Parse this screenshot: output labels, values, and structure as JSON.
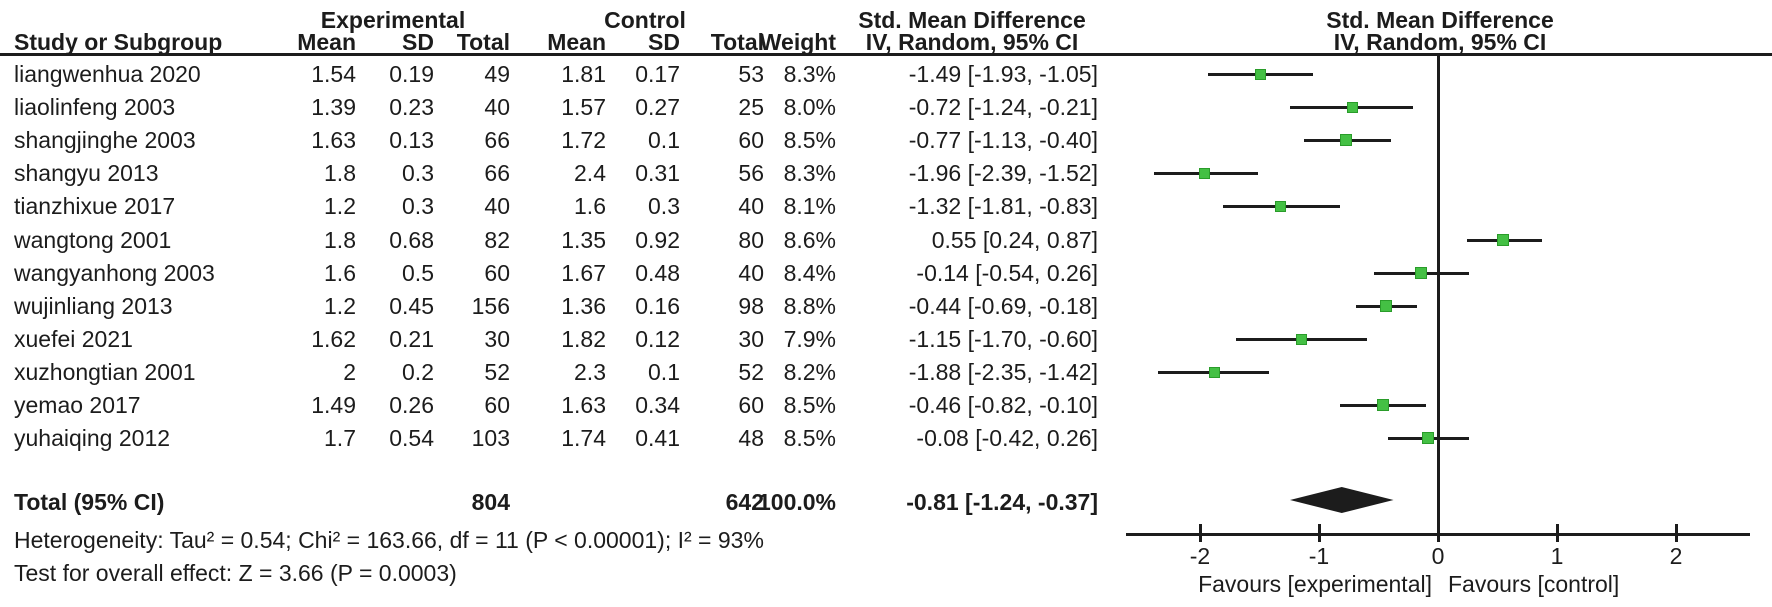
{
  "header": {
    "group_experimental": "Experimental",
    "group_control": "Control",
    "smd_text_title": "Std. Mean Difference",
    "smd_plot_title": "Std. Mean Difference",
    "col_study": "Study or Subgroup",
    "col_mean_e": "Mean",
    "col_sd_e": "SD",
    "col_total_e": "Total",
    "col_mean_c": "Mean",
    "col_sd_c": "SD",
    "col_total_c": "Total",
    "col_weight": "Weight",
    "col_ci_text": "IV, Random, 95% CI",
    "col_ci_plot": "IV, Random, 95% CI"
  },
  "colors": {
    "marker_green": "#44c044",
    "marker_border": "#2a9c2a",
    "line_black": "#1c1c1c"
  },
  "chart_data": {
    "type": "forest",
    "effect_label": "Std. Mean Difference",
    "method": "IV, Random, 95% CI",
    "x_ticks": [
      -2,
      -1,
      0,
      1,
      2
    ],
    "xlim": [
      -2.6,
      2.6
    ],
    "favours_left": "Favours [experimental]",
    "favours_right": "Favours [control]",
    "studies": [
      {
        "name": "liangwenhua 2020",
        "mean_e": "1.54",
        "sd_e": "0.19",
        "n_e": "49",
        "mean_c": "1.81",
        "sd_c": "0.17",
        "n_c": "53",
        "weight": "8.3%",
        "ci_text": "-1.49 [-1.93, -1.05]",
        "smd": -1.49,
        "lo": -1.93,
        "hi": -1.05
      },
      {
        "name": "liaolinfeng 2003",
        "mean_e": "1.39",
        "sd_e": "0.23",
        "n_e": "40",
        "mean_c": "1.57",
        "sd_c": "0.27",
        "n_c": "25",
        "weight": "8.0%",
        "ci_text": "-0.72 [-1.24, -0.21]",
        "smd": -0.72,
        "lo": -1.24,
        "hi": -0.21
      },
      {
        "name": "shangjinghe 2003",
        "mean_e": "1.63",
        "sd_e": "0.13",
        "n_e": "66",
        "mean_c": "1.72",
        "sd_c": "0.1",
        "n_c": "60",
        "weight": "8.5%",
        "ci_text": "-0.77 [-1.13, -0.40]",
        "smd": -0.77,
        "lo": -1.13,
        "hi": -0.4
      },
      {
        "name": "shangyu 2013",
        "mean_e": "1.8",
        "sd_e": "0.3",
        "n_e": "66",
        "mean_c": "2.4",
        "sd_c": "0.31",
        "n_c": "56",
        "weight": "8.3%",
        "ci_text": "-1.96 [-2.39, -1.52]",
        "smd": -1.96,
        "lo": -2.39,
        "hi": -1.52
      },
      {
        "name": "tianzhixue 2017",
        "mean_e": "1.2",
        "sd_e": "0.3",
        "n_e": "40",
        "mean_c": "1.6",
        "sd_c": "0.3",
        "n_c": "40",
        "weight": "8.1%",
        "ci_text": "-1.32 [-1.81, -0.83]",
        "smd": -1.32,
        "lo": -1.81,
        "hi": -0.83
      },
      {
        "name": "wangtong 2001",
        "mean_e": "1.8",
        "sd_e": "0.68",
        "n_e": "82",
        "mean_c": "1.35",
        "sd_c": "0.92",
        "n_c": "80",
        "weight": "8.6%",
        "ci_text": "0.55 [0.24, 0.87]",
        "smd": 0.55,
        "lo": 0.24,
        "hi": 0.87
      },
      {
        "name": "wangyanhong 2003",
        "mean_e": "1.6",
        "sd_e": "0.5",
        "n_e": "60",
        "mean_c": "1.67",
        "sd_c": "0.48",
        "n_c": "40",
        "weight": "8.4%",
        "ci_text": "-0.14 [-0.54, 0.26]",
        "smd": -0.14,
        "lo": -0.54,
        "hi": 0.26
      },
      {
        "name": "wujinliang 2013",
        "mean_e": "1.2",
        "sd_e": "0.45",
        "n_e": "156",
        "mean_c": "1.36",
        "sd_c": "0.16",
        "n_c": "98",
        "weight": "8.8%",
        "ci_text": "-0.44 [-0.69, -0.18]",
        "smd": -0.44,
        "lo": -0.69,
        "hi": -0.18
      },
      {
        "name": "xuefei 2021",
        "mean_e": "1.62",
        "sd_e": "0.21",
        "n_e": "30",
        "mean_c": "1.82",
        "sd_c": "0.12",
        "n_c": "30",
        "weight": "7.9%",
        "ci_text": "-1.15 [-1.70, -0.60]",
        "smd": -1.15,
        "lo": -1.7,
        "hi": -0.6
      },
      {
        "name": "xuzhongtian 2001",
        "mean_e": "2",
        "sd_e": "0.2",
        "n_e": "52",
        "mean_c": "2.3",
        "sd_c": "0.1",
        "n_c": "52",
        "weight": "8.2%",
        "ci_text": "-1.88 [-2.35, -1.42]",
        "smd": -1.88,
        "lo": -2.35,
        "hi": -1.42
      },
      {
        "name": "yemao 2017",
        "mean_e": "1.49",
        "sd_e": "0.26",
        "n_e": "60",
        "mean_c": "1.63",
        "sd_c": "0.34",
        "n_c": "60",
        "weight": "8.5%",
        "ci_text": "-0.46 [-0.82, -0.10]",
        "smd": -0.46,
        "lo": -0.82,
        "hi": -0.1
      },
      {
        "name": "yuhaiqing 2012",
        "mean_e": "1.7",
        "sd_e": "0.54",
        "n_e": "103",
        "mean_c": "1.74",
        "sd_c": "0.41",
        "n_c": "48",
        "weight": "8.5%",
        "ci_text": "-0.08 [-0.42, 0.26]",
        "smd": -0.08,
        "lo": -0.42,
        "hi": 0.26
      }
    ],
    "total": {
      "label": "Total (95% CI)",
      "n_e": "804",
      "n_c": "642",
      "weight": "100.0%",
      "ci_text": "-0.81 [-1.24, -0.37]",
      "smd": -0.81,
      "lo": -1.24,
      "hi": -0.37
    },
    "heterogeneity": "Heterogeneity: Tau² = 0.54; Chi² = 163.66, df = 11 (P < 0.00001); I² = 93%",
    "overall_effect": "Test for overall effect: Z = 3.66 (P = 0.0003)"
  }
}
